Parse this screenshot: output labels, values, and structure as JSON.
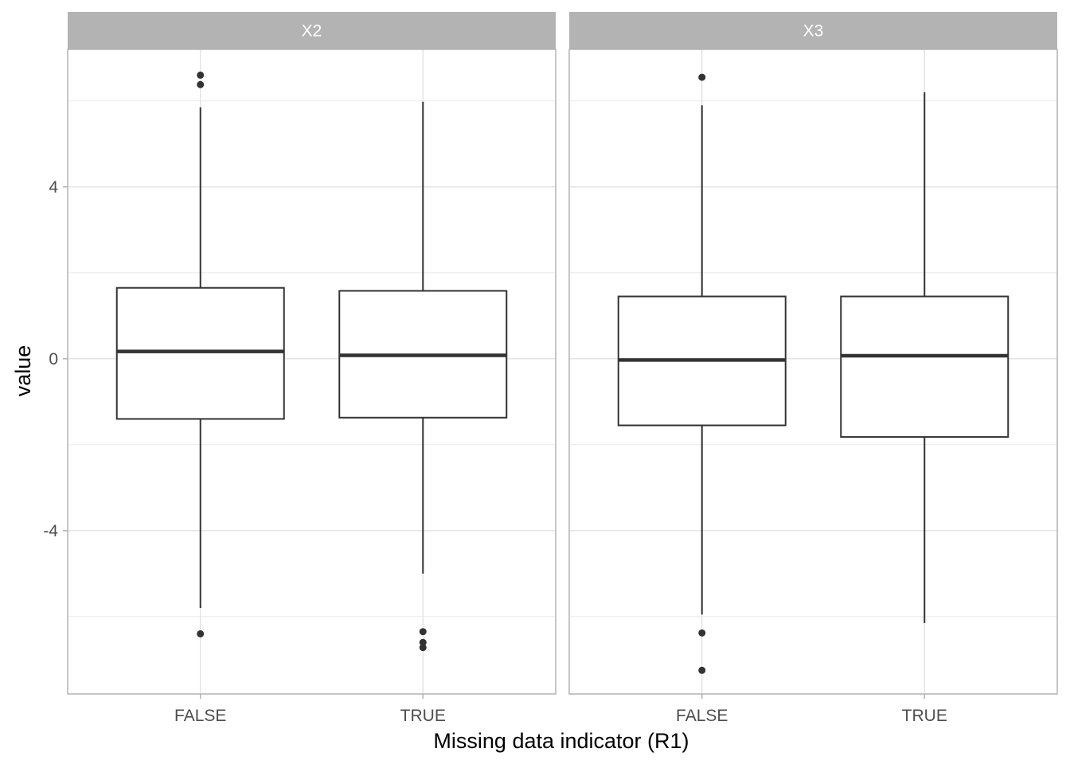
{
  "chart_data": {
    "type": "boxplot",
    "xlabel": "Missing data indicator (R1)",
    "ylabel": "value",
    "ylim": [
      -7.8,
      7.2
    ],
    "y_ticks": [
      -4,
      0,
      4
    ],
    "grid": true,
    "categories": [
      "FALSE",
      "TRUE"
    ],
    "panels": [
      {
        "name": "X2",
        "boxes": [
          {
            "category": "FALSE",
            "lower_whisker": -5.8,
            "q1": -1.4,
            "median": 0.17,
            "q3": 1.65,
            "upper_whisker": 5.85,
            "outliers": [
              6.6,
              6.38,
              -6.4
            ]
          },
          {
            "category": "TRUE",
            "lower_whisker": -5.0,
            "q1": -1.37,
            "median": 0.08,
            "q3": 1.58,
            "upper_whisker": 5.98,
            "outliers": [
              -6.35,
              -6.6,
              -6.72
            ]
          }
        ]
      },
      {
        "name": "X3",
        "boxes": [
          {
            "category": "FALSE",
            "lower_whisker": -5.95,
            "q1": -1.55,
            "median": -0.03,
            "q3": 1.45,
            "upper_whisker": 5.9,
            "outliers": [
              6.55,
              -6.38,
              -7.25
            ]
          },
          {
            "category": "TRUE",
            "lower_whisker": -6.15,
            "q1": -1.82,
            "median": 0.07,
            "q3": 1.45,
            "upper_whisker": 6.2,
            "outliers": []
          }
        ]
      }
    ]
  },
  "colors": {
    "strip_fill": "#b3b3b3",
    "strip_text": "#ffffff",
    "panel_border": "#b3b3b3",
    "grid_major": "#dedede",
    "grid_minor": "#ececec",
    "box_line": "#333333",
    "tick_text": "#4d4d4d"
  }
}
